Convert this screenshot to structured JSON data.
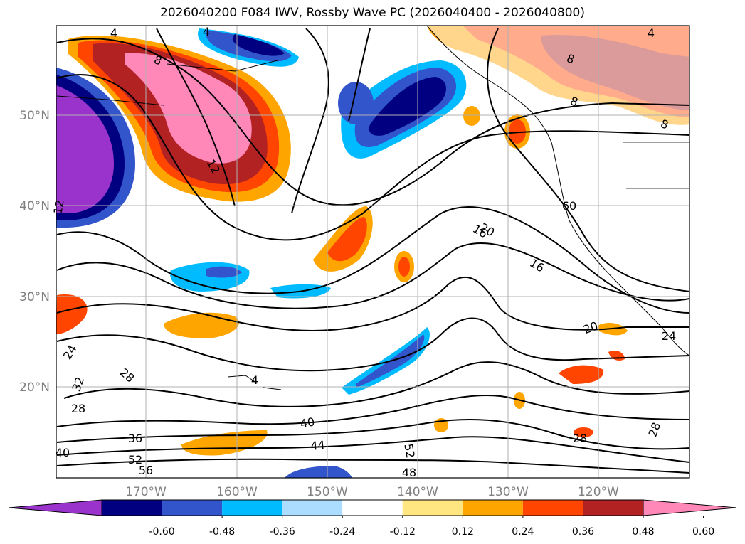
{
  "title": "2026040200 F084 IWV, Rossby Wave PC (2026040400 - 2026040800)",
  "lat_labels": [
    "50°N",
    "40°N",
    "30°N",
    "20°N"
  ],
  "lon_labels": [
    "170°W",
    "160°W",
    "150°W",
    "140°W",
    "130°W",
    "120°W"
  ],
  "colorbar": {
    "colors": [
      "#9933cc",
      "#000080",
      "#3355cc",
      "#00bbff",
      "#aaddff",
      "#ffffff",
      "#ffe680",
      "#ffa500",
      "#ff4500",
      "#b22222",
      "#ff88b8"
    ],
    "tick_labels": [
      "-0.60",
      "-0.48",
      "-0.36",
      "-0.24",
      "-0.12",
      "0.12",
      "0.24",
      "0.36",
      "0.48",
      "0.60"
    ]
  },
  "contour_labels": [
    "4",
    "4",
    "4",
    "8",
    "8",
    "8",
    "8",
    "12",
    "12",
    "16",
    "16",
    "20",
    "20",
    "24",
    "24",
    "28",
    "28",
    "28",
    "28",
    "32",
    "36",
    "40",
    "40",
    "44",
    "52",
    "48",
    "52",
    "56",
    "60",
    "4"
  ],
  "land_color": "#ffffff",
  "grid": true
}
